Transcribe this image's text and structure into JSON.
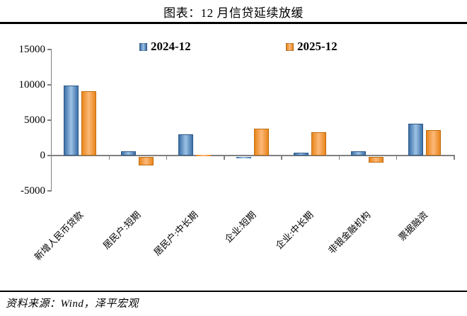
{
  "page": {
    "title": "图表：12 月信贷延续放缓",
    "source": "资料来源：Wind，泽平宏观"
  },
  "colors": {
    "axis": "#808080",
    "text": "#000000",
    "background": "#ffffff"
  },
  "chart_data": {
    "type": "bar",
    "title": "图表：12 月信贷延续放缓",
    "categories": [
      "新增人民币贷款",
      "居民户:短期",
      "居民户:中长期",
      "企业:短期",
      "企业:中长期",
      "非银金融机构",
      "票据融资"
    ],
    "series": [
      {
        "name": "2024-12",
        "values": [
          9900,
          600,
          3000,
          -200,
          400,
          600,
          4500
        ],
        "color": "#4f81bd",
        "color_edge": "#3d6fa8",
        "color_center": "#9dc3e6",
        "color_border": "#2c5a87"
      },
      {
        "name": "2025-12",
        "values": [
          9100,
          -1200,
          100,
          3800,
          3300,
          -800,
          3600
        ],
        "color": "#f79646",
        "color_edge": "#e9861c",
        "color_center": "#fcb879",
        "color_border": "#c06c0f"
      }
    ],
    "y_ticks": [
      15000,
      10000,
      5000,
      0,
      -5000
    ],
    "ylim": [
      -5000,
      15000
    ],
    "xlabel": "",
    "ylabel": "",
    "grid": false,
    "legend_position": "top"
  }
}
